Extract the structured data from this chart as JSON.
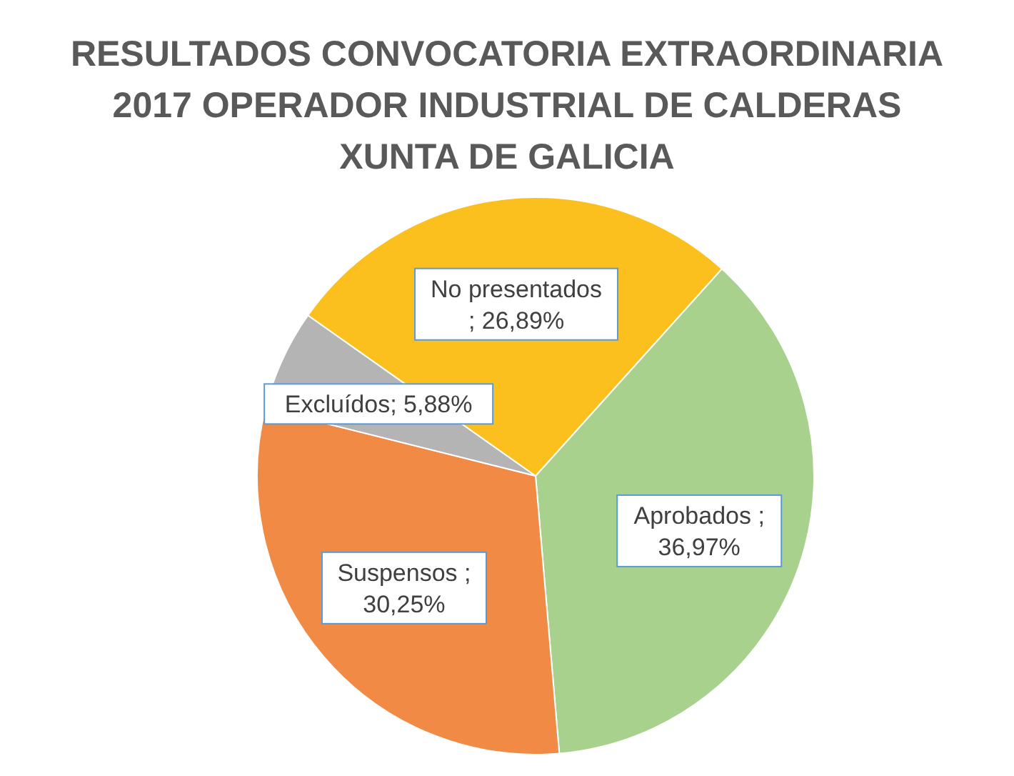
{
  "chart_data": {
    "type": "pie",
    "title": "RESULTADOS CONVOCATORIA EXTRAORDINARIA 2017 OPERADOR INDUSTRIAL DE CALDERAS XUNTA DE GALICIA",
    "categories": [
      "Aprobados",
      "Suspensos",
      "Excluídos",
      "No presentados"
    ],
    "values": [
      36.97,
      30.25,
      5.88,
      26.89
    ],
    "value_labels": [
      " ;\n36,97%",
      " ;\n30,25%",
      "; 5,88%",
      "\n; 26,89%"
    ],
    "colors": [
      "#a9d18e",
      "#f08a45",
      "#b4b4b4",
      "#fcc01e"
    ]
  }
}
